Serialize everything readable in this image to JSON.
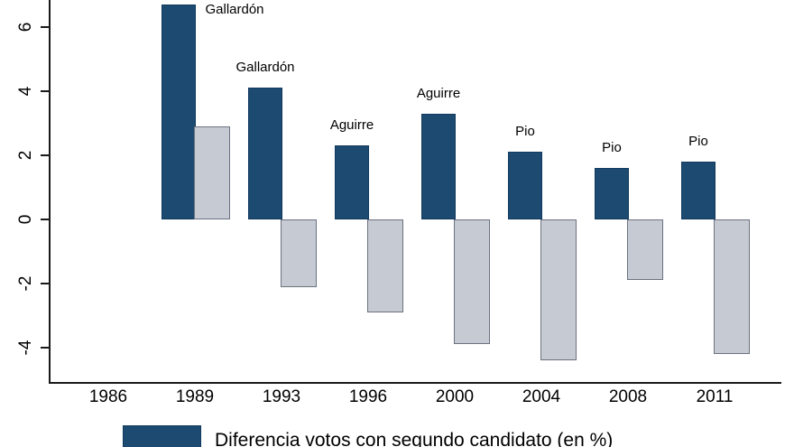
{
  "colors": {
    "navy_fill": "#1c4a70",
    "navy_border": "#123a5e",
    "gray_fill": "#c5cad3",
    "gray_border": "#6c7280",
    "axis": "#1a1a1a",
    "background": "#ffffff"
  },
  "chart_data": {
    "type": "bar",
    "title": "",
    "xlabel": "",
    "ylabel": "",
    "categories": [
      "1986",
      "1989",
      "1993",
      "1996",
      "2000",
      "2004",
      "2008",
      "2011"
    ],
    "series": [
      {
        "name": "Diferencia votos con segundo candidato (en %)",
        "color": "#1c4a70",
        "values": [
          null,
          6.7,
          4.1,
          2.3,
          3.3,
          2.1,
          1.6,
          1.8
        ]
      },
      {
        "name": "",
        "color": "#c5cad3",
        "values": [
          null,
          2.9,
          -2.1,
          -2.9,
          -3.9,
          -4.4,
          -1.9,
          -4.2
        ]
      }
    ],
    "bar_labels": [
      {
        "year": "1989",
        "text": "Gallardón",
        "x": 260,
        "y": 3
      },
      {
        "year": "1993",
        "text": "Gallardón"
      },
      {
        "year": "1996",
        "text": "Aguirre"
      },
      {
        "year": "2000",
        "text": "Aguirre"
      },
      {
        "year": "2004",
        "text": "Pio"
      },
      {
        "year": "2008",
        "text": "Pio"
      },
      {
        "year": "2011",
        "text": "Pio"
      }
    ],
    "y_ticks": [
      6,
      4,
      2,
      0,
      -2,
      -4
    ],
    "ylim": [
      -5.1,
      6.8
    ],
    "grid": false,
    "legend_position": "bottom",
    "legend": {
      "items": [
        {
          "label": "Diferencia votos con segundo candidato (en %)",
          "color": "#1c4a70"
        }
      ]
    }
  }
}
